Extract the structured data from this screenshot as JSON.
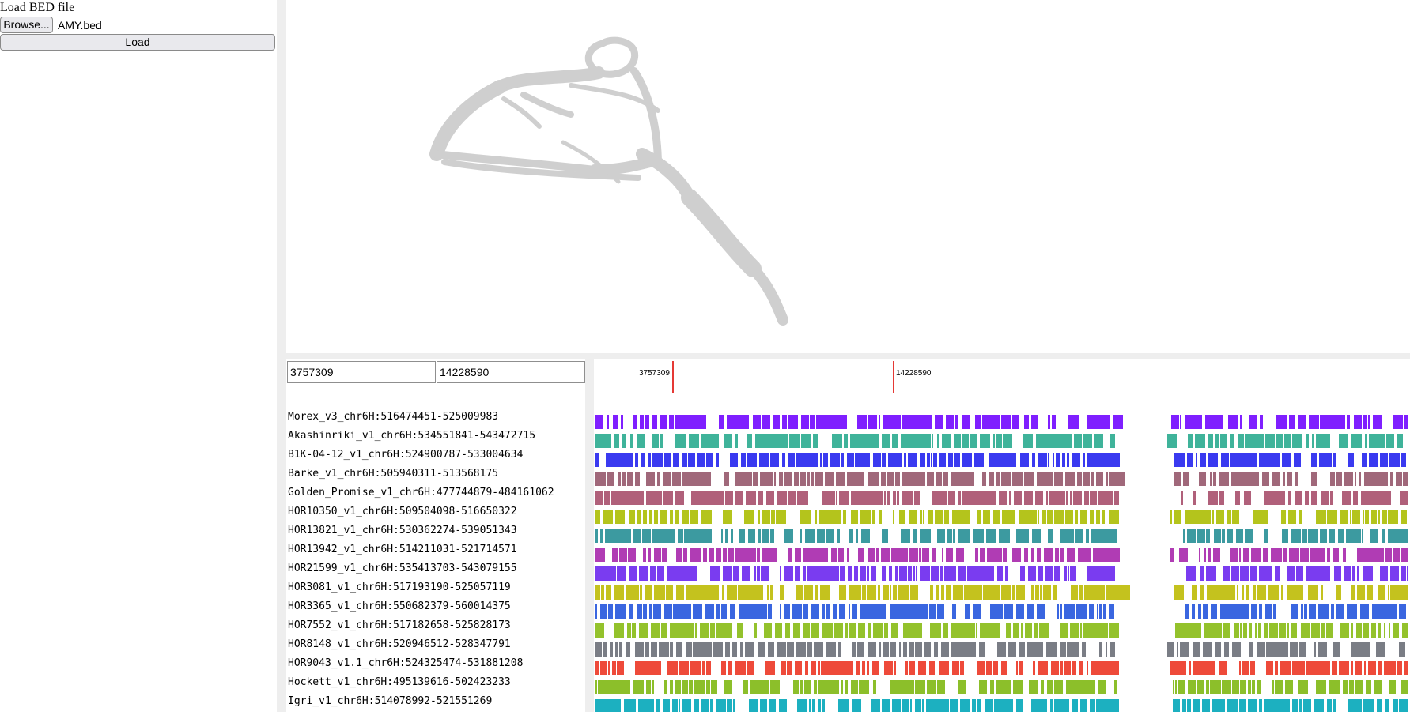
{
  "loader": {
    "title": "Load BED file",
    "browse_label": "Browse...",
    "file_name": "AMY.bed",
    "load_label": "Load"
  },
  "range": {
    "start": "3757309",
    "end": "14228590"
  },
  "ruler": {
    "start_label": "3757309",
    "end_label": "14228590",
    "marker_color": "#e53935"
  },
  "tracks": [
    {
      "label": "Morex_v3_chr6H:516474451-525009983",
      "color": "#7f1fff"
    },
    {
      "label": "Akashinriki_v1_chr6H:534551841-543472715",
      "color": "#3fb39a"
    },
    {
      "label": "B1K-04-12_v1_chr6H:524900787-533004634",
      "color": "#3a3af0"
    },
    {
      "label": "Barke_v1_chr6H:505940311-513568175",
      "color": "#a0687a"
    },
    {
      "label": "Golden_Promise_v1_chr6H:477744879-484161062",
      "color": "#b0607a"
    },
    {
      "label": "HOR10350_v1_chr6H:509504098-516650322",
      "color": "#b4c41c"
    },
    {
      "label": "HOR13821_v1_chr6H:530362274-539051343",
      "color": "#3c9aa0"
    },
    {
      "label": "HOR13942_v1_chr6H:514211031-521714571",
      "color": "#b03cb4"
    },
    {
      "label": "HOR21599_v1_chr6H:535413703-543079155",
      "color": "#7a3cf0"
    },
    {
      "label": "HOR3081_v1_chr6H:517193190-525057119",
      "color": "#c4c21e"
    },
    {
      "label": "HOR3365_v1_chr6H:550682379-560014375",
      "color": "#3a66e0"
    },
    {
      "label": "HOR7552_v1_chr6H:517182658-525828173",
      "color": "#94c22c"
    },
    {
      "label": "HOR8148_v1_chr6H:520946512-528347791",
      "color": "#7a7d85"
    },
    {
      "label": "HOR9043_v1.1_chr6H:524325474-531881208",
      "color": "#ee4a3a"
    },
    {
      "label": "Hockett_v1_chr6H:495139616-502423233",
      "color": "#8cbf2a"
    },
    {
      "label": "Igri_v1_chr6H:514078992-521551269",
      "color": "#1cb0c0"
    }
  ]
}
